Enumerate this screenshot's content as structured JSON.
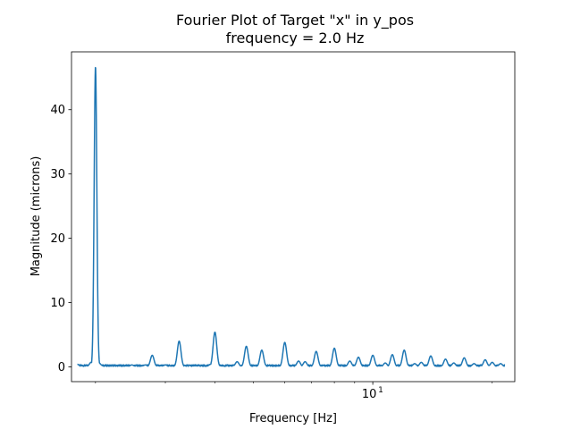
{
  "chart_data": {
    "type": "line",
    "title_line1": "Fourier Plot of Target \"x\" in y_pos",
    "title_line2": "frequency = 2.0 Hz",
    "xlabel": "Frequency [Hz]",
    "ylabel": "Magnitude (microns)",
    "xscale": "log",
    "xlim": [
      1.74,
      22.8
    ],
    "ylim": [
      -2.3,
      49.0
    ],
    "x_major_ticks": [
      {
        "value": 10,
        "label": "10"
      }
    ],
    "x_minor_ticks": [
      2,
      3,
      4,
      5,
      6,
      7,
      8,
      9,
      20
    ],
    "y_ticks": [
      {
        "value": 0,
        "label": "0"
      },
      {
        "value": 10,
        "label": "10"
      },
      {
        "value": 20,
        "label": "20"
      },
      {
        "value": 30,
        "label": "30"
      },
      {
        "value": 40,
        "label": "40"
      }
    ],
    "grid": false,
    "line_color": "#1f77b4",
    "x_range": [
      1.8,
      21.5
    ],
    "baseline": 0.2,
    "peaks": [
      {
        "x": 1.8,
        "y": 0.4
      },
      {
        "x": 1.95,
        "y": 0.7
      },
      {
        "x": 2.0,
        "y": 46.7
      },
      {
        "x": 2.47,
        "y": 0.3
      },
      {
        "x": 2.67,
        "y": 0.3
      },
      {
        "x": 2.78,
        "y": 1.8
      },
      {
        "x": 3.0,
        "y": 0.3
      },
      {
        "x": 3.25,
        "y": 4.0
      },
      {
        "x": 3.9,
        "y": 0.4
      },
      {
        "x": 4.0,
        "y": 5.4
      },
      {
        "x": 4.55,
        "y": 0.8
      },
      {
        "x": 4.8,
        "y": 3.2
      },
      {
        "x": 5.25,
        "y": 2.6
      },
      {
        "x": 6.0,
        "y": 3.8
      },
      {
        "x": 6.5,
        "y": 0.9
      },
      {
        "x": 6.75,
        "y": 0.8
      },
      {
        "x": 7.2,
        "y": 2.4
      },
      {
        "x": 8.0,
        "y": 2.9
      },
      {
        "x": 8.75,
        "y": 0.9
      },
      {
        "x": 9.2,
        "y": 1.5
      },
      {
        "x": 10.0,
        "y": 1.8
      },
      {
        "x": 10.75,
        "y": 0.6
      },
      {
        "x": 11.2,
        "y": 1.9
      },
      {
        "x": 12.0,
        "y": 2.6
      },
      {
        "x": 12.75,
        "y": 0.5
      },
      {
        "x": 13.25,
        "y": 0.7
      },
      {
        "x": 14.0,
        "y": 1.7
      },
      {
        "x": 15.25,
        "y": 1.2
      },
      {
        "x": 16.0,
        "y": 0.6
      },
      {
        "x": 17.0,
        "y": 1.4
      },
      {
        "x": 18.0,
        "y": 0.5
      },
      {
        "x": 19.2,
        "y": 1.1
      },
      {
        "x": 20.0,
        "y": 0.7
      },
      {
        "x": 21.0,
        "y": 0.5
      }
    ]
  }
}
